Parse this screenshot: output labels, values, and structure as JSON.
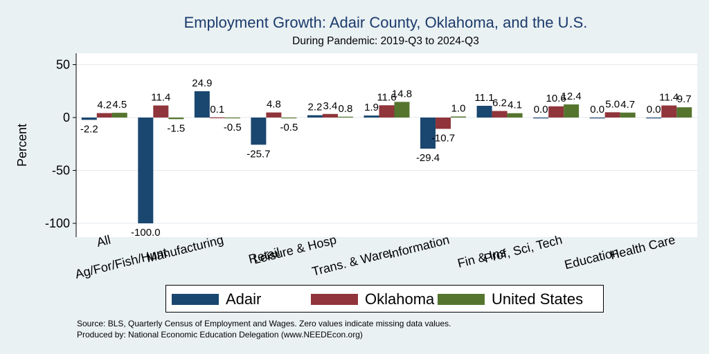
{
  "chart_data": {
    "type": "bar",
    "title": "Employment Growth: Adair County, Oklahoma, and the U.S.",
    "subtitle": "During Pandemic: 2019-Q3 to 2024-Q3",
    "ylabel": "Percent",
    "xlabel": "",
    "ylim": [
      -110,
      55
    ],
    "yticks": [
      50,
      0,
      -50,
      -100
    ],
    "grid": true,
    "legend_position": "bottom",
    "categories": [
      "All",
      "Ag/For/Fish/Hunt",
      "Manufacturing",
      "Retail",
      "Leisure & Hosp",
      "Trans. & Ware.",
      "Information",
      "Fin & Ins",
      "Prof, Sci, Tech",
      "Education",
      "Health Care"
    ],
    "series": [
      {
        "name": "Adair",
        "color": "#1a476f",
        "values": [
          -2.2,
          -100.0,
          24.9,
          -25.7,
          2.2,
          1.9,
          -29.4,
          11.1,
          0.0,
          0.0,
          0.0
        ]
      },
      {
        "name": "Oklahoma",
        "color": "#90353b",
        "values": [
          4.2,
          11.4,
          0.1,
          4.8,
          3.4,
          11.6,
          -10.7,
          6.2,
          10.6,
          5.0,
          11.4
        ]
      },
      {
        "name": "United States",
        "color": "#55752f",
        "values": [
          4.5,
          -1.5,
          -0.5,
          -0.5,
          0.8,
          14.8,
          1.0,
          4.1,
          12.4,
          4.7,
          9.7
        ]
      }
    ]
  },
  "source_lines": [
    "Source: BLS, Quarterly Census of Employment and Wages. Zero values indicate missing data values.",
    "Produced by: National Economic Education Delegation (www.NEEDEcon.org)"
  ]
}
